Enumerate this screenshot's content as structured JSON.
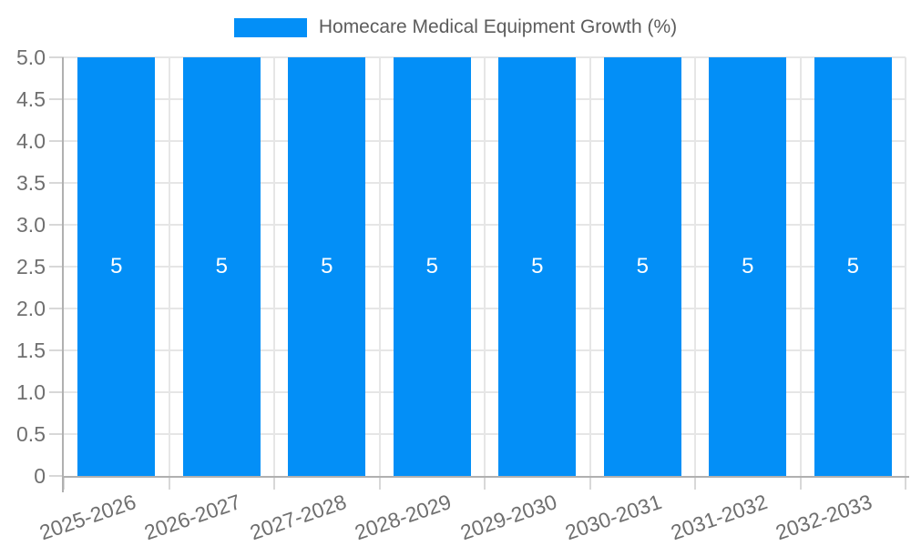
{
  "chart_data": {
    "type": "bar",
    "title": "",
    "legend": "Homecare Medical Equipment Growth (%)",
    "legend_position": "top-center",
    "categories": [
      "2025-2026",
      "2026-2027",
      "2027-2028",
      "2028-2029",
      "2029-2030",
      "2030-2031",
      "2031-2032",
      "2032-2033"
    ],
    "values": [
      5,
      5,
      5,
      5,
      5,
      5,
      5,
      5
    ],
    "value_labels": [
      "5",
      "5",
      "5",
      "5",
      "5",
      "5",
      "5",
      "5"
    ],
    "xlabel": "",
    "ylabel": "",
    "ylim": [
      0,
      5
    ],
    "ytick_step": 0.5,
    "ytick_labels": [
      "0",
      "0.5",
      "1.0",
      "1.5",
      "2.0",
      "2.5",
      "3.0",
      "3.5",
      "4.0",
      "4.5",
      "5.0"
    ],
    "grid": true,
    "colors": {
      "bar": "#038FF7",
      "grid": "#E6E6E6",
      "tick": "#D8D8D8",
      "axis": "#B0B0B0",
      "tick_label": "#6F6F6F",
      "legend_text": "#5C5C5C",
      "value_label": "#FFFFFF",
      "background": "#FFFFFF"
    }
  }
}
